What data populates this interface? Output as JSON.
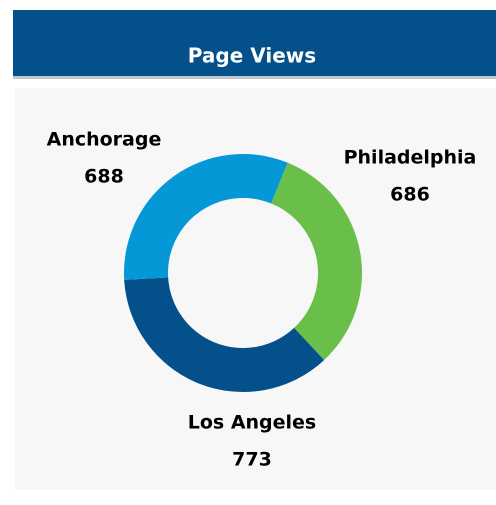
{
  "chart_data": {
    "type": "donut",
    "title": "Page Views",
    "categories": [
      "Philadelphia",
      "Los Angeles",
      "Anchorage"
    ],
    "values": [
      686,
      773,
      688
    ],
    "colors": [
      "#6abf4b",
      "#03508a",
      "#0698d6"
    ]
  }
}
